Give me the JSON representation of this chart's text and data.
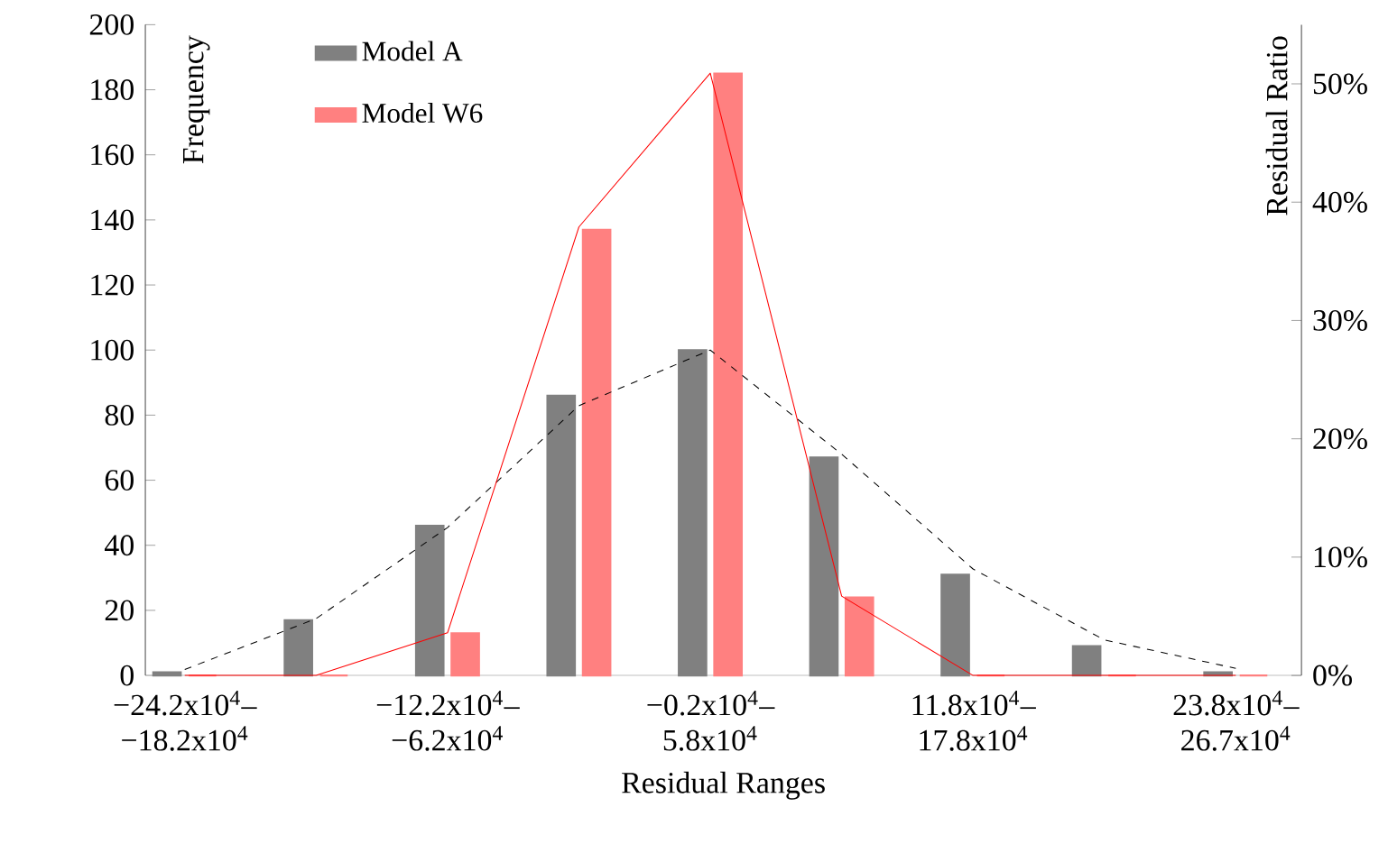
{
  "chart_data": {
    "type": "bar",
    "xlabel": "Residual Ranges",
    "ylabel": "Frequency",
    "y2label": "Residual Ratio",
    "categories": [
      "−24.2x10$^{4}$– −18.2x10$^{4}$",
      null,
      "−12.2x10$^{4}$– −6.2x10$^{4}$",
      null,
      "−0.2x10$^{4}$– 5.8x10$^{4}$",
      null,
      "11.8x10$^{4}$– 17.8x10$^{4}$",
      null,
      "23.8x10$^{4}$– 26.7x10$^{4}$"
    ],
    "series": [
      {
        "name": "Model A",
        "color": "#808080",
        "values": [
          1,
          17,
          46,
          86,
          100,
          67,
          31,
          9,
          1
        ]
      },
      {
        "name": "Model W6",
        "color": "#ff8080",
        "values": [
          0,
          0,
          13,
          137,
          185,
          24,
          0,
          0,
          0
        ]
      },
      {
        "type": "line",
        "axis": "y2",
        "color": "#000000",
        "line_style": "dashed",
        "values": [
          0.5,
          4.8,
          12.5,
          22.8,
          27.5,
          18.7,
          9,
          3,
          0.6
        ]
      },
      {
        "type": "line",
        "axis": "y2",
        "color": "#ff0000",
        "line_style": "solid",
        "values": [
          0,
          0,
          3.6,
          37.9,
          50.9,
          6.7,
          0,
          0,
          0
        ]
      }
    ],
    "ylim": [
      0,
      200
    ],
    "yticks": [
      0,
      20,
      40,
      60,
      80,
      100,
      120,
      140,
      160,
      180,
      200
    ],
    "y2lim": [
      0,
      55
    ],
    "y2ticks": [
      {
        "value": 0,
        "label": "0%"
      },
      {
        "value": 10,
        "label": "10%"
      },
      {
        "value": 20,
        "label": "20%"
      },
      {
        "value": 30,
        "label": "30%"
      },
      {
        "value": 40,
        "label": "40%"
      },
      {
        "value": 50,
        "label": "50%"
      }
    ],
    "legend": "top left",
    "marker": "none"
  }
}
